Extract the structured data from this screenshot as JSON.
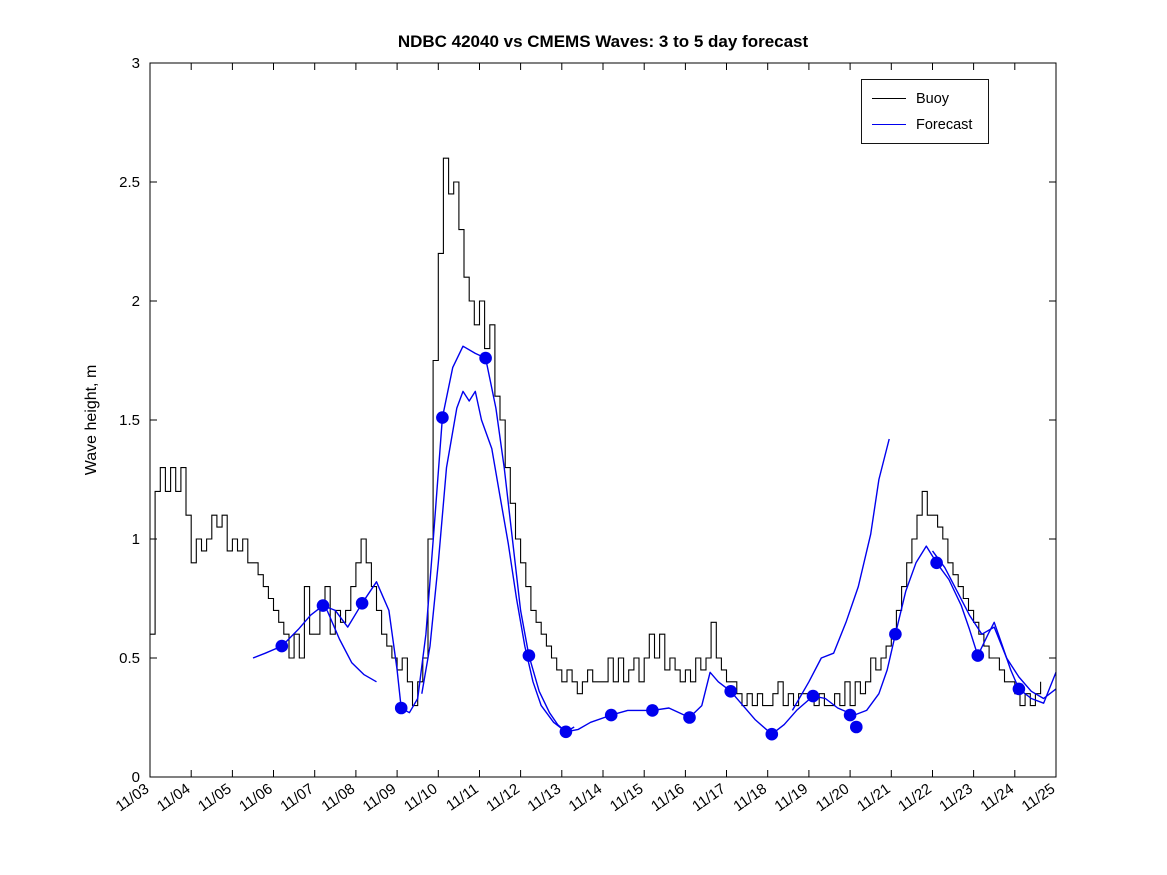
{
  "chart_data": {
    "type": "line",
    "title": "NDBC 42040 vs CMEMS Waves: 3 to 5 day forecast",
    "xlabel": "",
    "ylabel": "Wave height, m",
    "xlim": [
      0,
      22
    ],
    "ylim": [
      0,
      3
    ],
    "grid": false,
    "legend_position": "top-right-inside",
    "x_tick_labels": [
      "11/03",
      "11/04",
      "11/05",
      "11/06",
      "11/07",
      "11/08",
      "11/09",
      "11/10",
      "11/11",
      "11/12",
      "11/13",
      "11/14",
      "11/15",
      "11/16",
      "11/17",
      "11/18",
      "11/19",
      "11/20",
      "11/21",
      "11/22",
      "11/23",
      "11/24",
      "11/25"
    ],
    "y_ticks": [
      0,
      0.5,
      1,
      1.5,
      2,
      2.5,
      3
    ],
    "y_tick_labels": [
      "0",
      "0.5",
      "1",
      "1.5",
      "2",
      "2.5",
      "3"
    ],
    "colors": {
      "buoy": "#000000",
      "forecast": "#0000ee"
    },
    "legend": [
      {
        "label": "Buoy",
        "color": "#000000"
      },
      {
        "label": "Forecast",
        "color": "#0000ee"
      }
    ],
    "buoy": {
      "name": "Buoy",
      "style": "steps",
      "start_day": 0,
      "dt": 0.125,
      "values": [
        0.6,
        1.2,
        1.3,
        1.2,
        1.3,
        1.2,
        1.3,
        1.1,
        0.9,
        1.0,
        0.95,
        1.0,
        1.1,
        1.05,
        1.1,
        0.95,
        1.0,
        0.95,
        1.0,
        0.9,
        0.9,
        0.85,
        0.8,
        0.75,
        0.7,
        0.65,
        0.6,
        0.5,
        0.6,
        0.5,
        0.8,
        0.6,
        0.6,
        0.7,
        0.8,
        0.6,
        0.7,
        0.65,
        0.7,
        0.8,
        0.9,
        1.0,
        0.9,
        0.8,
        0.7,
        0.6,
        0.55,
        0.5,
        0.45,
        0.5,
        0.4,
        0.3,
        0.4,
        0.5,
        1.0,
        1.75,
        2.2,
        2.6,
        2.45,
        2.5,
        2.3,
        2.1,
        2.0,
        1.9,
        2.0,
        1.8,
        1.9,
        1.6,
        1.5,
        1.3,
        1.15,
        1.0,
        0.9,
        0.8,
        0.7,
        0.65,
        0.6,
        0.55,
        0.5,
        0.45,
        0.4,
        0.45,
        0.4,
        0.35,
        0.4,
        0.45,
        0.4,
        0.4,
        0.4,
        0.5,
        0.4,
        0.5,
        0.4,
        0.45,
        0.5,
        0.4,
        0.5,
        0.6,
        0.5,
        0.6,
        0.45,
        0.5,
        0.45,
        0.4,
        0.45,
        0.4,
        0.5,
        0.45,
        0.5,
        0.65,
        0.5,
        0.45,
        0.4,
        0.4,
        0.35,
        0.3,
        0.35,
        0.3,
        0.35,
        0.3,
        0.3,
        0.35,
        0.4,
        0.3,
        0.35,
        0.3,
        0.35,
        0.35,
        0.35,
        0.3,
        0.35,
        0.3,
        0.3,
        0.35,
        0.3,
        0.4,
        0.3,
        0.4,
        0.35,
        0.4,
        0.5,
        0.45,
        0.5,
        0.55,
        0.6,
        0.7,
        0.8,
        0.9,
        1.0,
        1.1,
        1.2,
        1.1,
        1.1,
        1.05,
        1.0,
        0.9,
        0.85,
        0.8,
        0.75,
        0.7,
        0.65,
        0.6,
        0.55,
        0.5,
        0.5,
        0.45,
        0.4,
        0.4,
        0.35,
        0.3,
        0.35,
        0.3,
        0.35,
        0.4
      ]
    },
    "forecast_segments": [
      [
        [
          2.5,
          0.5
        ],
        [
          2.8,
          0.52
        ],
        [
          3.2,
          0.55
        ],
        [
          3.6,
          0.62
        ],
        [
          3.9,
          0.68
        ],
        [
          4.2,
          0.72
        ],
        [
          4.5,
          0.7
        ],
        [
          4.8,
          0.63
        ],
        [
          5.15,
          0.73
        ],
        [
          5.5,
          0.82
        ],
        [
          5.8,
          0.7
        ],
        [
          6.0,
          0.45
        ],
        [
          6.1,
          0.29
        ],
        [
          6.3,
          0.27
        ],
        [
          6.5,
          0.33
        ],
        [
          6.7,
          0.6
        ],
        [
          6.9,
          1.05
        ],
        [
          7.1,
          1.51
        ],
        [
          7.35,
          1.72
        ],
        [
          7.6,
          1.81
        ],
        [
          7.9,
          1.78
        ],
        [
          8.15,
          1.76
        ],
        [
          8.4,
          1.55
        ],
        [
          8.6,
          1.3
        ],
        [
          8.8,
          1.0
        ],
        [
          9.0,
          0.7
        ],
        [
          9.2,
          0.51
        ],
        [
          9.45,
          0.36
        ],
        [
          9.7,
          0.27
        ],
        [
          9.9,
          0.22
        ],
        [
          10.1,
          0.19
        ],
        [
          10.4,
          0.2
        ],
        [
          10.7,
          0.23
        ],
        [
          11.2,
          0.26
        ],
        [
          11.6,
          0.28
        ],
        [
          12.2,
          0.28
        ],
        [
          12.6,
          0.29
        ],
        [
          13.1,
          0.25
        ],
        [
          13.4,
          0.3
        ],
        [
          13.6,
          0.44
        ],
        [
          13.8,
          0.4
        ],
        [
          14.1,
          0.36
        ],
        [
          14.4,
          0.3
        ],
        [
          14.7,
          0.24
        ],
        [
          15.1,
          0.18
        ],
        [
          15.4,
          0.22
        ],
        [
          15.7,
          0.28
        ],
        [
          16.1,
          0.34
        ],
        [
          16.4,
          0.33
        ],
        [
          16.7,
          0.29
        ],
        [
          17.1,
          0.26
        ],
        [
          17.4,
          0.28
        ],
        [
          17.7,
          0.35
        ],
        [
          17.9,
          0.45
        ],
        [
          18.1,
          0.6
        ],
        [
          18.35,
          0.78
        ],
        [
          18.6,
          0.9
        ],
        [
          18.85,
          0.97
        ],
        [
          19.1,
          0.9
        ],
        [
          19.4,
          0.83
        ],
        [
          19.7,
          0.72
        ],
        [
          19.9,
          0.62
        ],
        [
          20.1,
          0.51
        ],
        [
          20.35,
          0.6
        ],
        [
          20.5,
          0.65
        ],
        [
          20.7,
          0.55
        ],
        [
          20.9,
          0.45
        ],
        [
          21.1,
          0.37
        ],
        [
          21.4,
          0.33
        ],
        [
          21.7,
          0.31
        ],
        [
          22.0,
          0.44
        ]
      ],
      [
        [
          4.3,
          0.7
        ],
        [
          4.6,
          0.58
        ],
        [
          4.9,
          0.48
        ],
        [
          5.2,
          0.43
        ],
        [
          5.5,
          0.4
        ]
      ],
      [
        [
          6.6,
          0.35
        ],
        [
          6.8,
          0.55
        ],
        [
          7.0,
          0.9
        ],
        [
          7.2,
          1.3
        ],
        [
          7.45,
          1.55
        ],
        [
          7.6,
          1.62
        ],
        [
          7.75,
          1.58
        ],
        [
          7.9,
          1.62
        ],
        [
          8.05,
          1.5
        ],
        [
          8.3,
          1.38
        ],
        [
          8.5,
          1.18
        ],
        [
          8.7,
          0.98
        ],
        [
          8.9,
          0.75
        ],
        [
          9.1,
          0.55
        ],
        [
          9.3,
          0.4
        ],
        [
          9.5,
          0.3
        ],
        [
          9.8,
          0.23
        ],
        [
          10.1,
          0.19
        ],
        [
          10.3,
          0.21
        ]
      ],
      [
        [
          15.6,
          0.28
        ],
        [
          16.0,
          0.4
        ],
        [
          16.3,
          0.5
        ],
        [
          16.6,
          0.52
        ],
        [
          16.9,
          0.65
        ],
        [
          17.2,
          0.8
        ],
        [
          17.5,
          1.02
        ],
        [
          17.7,
          1.25
        ],
        [
          17.95,
          1.42
        ]
      ],
      [
        [
          19.0,
          0.95
        ],
        [
          19.3,
          0.88
        ],
        [
          19.6,
          0.78
        ],
        [
          19.9,
          0.68
        ],
        [
          20.2,
          0.6
        ],
        [
          20.5,
          0.63
        ],
        [
          20.8,
          0.5
        ],
        [
          21.1,
          0.42
        ],
        [
          21.4,
          0.36
        ],
        [
          21.7,
          0.33
        ],
        [
          22.0,
          0.37
        ]
      ]
    ],
    "forecast_markers": [
      [
        3.2,
        0.55
      ],
      [
        4.2,
        0.72
      ],
      [
        5.15,
        0.73
      ],
      [
        6.1,
        0.29
      ],
      [
        7.1,
        1.51
      ],
      [
        8.15,
        1.76
      ],
      [
        9.2,
        0.51
      ],
      [
        10.1,
        0.19
      ],
      [
        11.2,
        0.26
      ],
      [
        12.2,
        0.28
      ],
      [
        13.1,
        0.25
      ],
      [
        14.1,
        0.36
      ],
      [
        15.1,
        0.18
      ],
      [
        16.1,
        0.34
      ],
      [
        17.0,
        0.26
      ],
      [
        17.15,
        0.21
      ],
      [
        18.1,
        0.6
      ],
      [
        19.1,
        0.9
      ],
      [
        20.1,
        0.51
      ],
      [
        21.1,
        0.37
      ]
    ]
  }
}
